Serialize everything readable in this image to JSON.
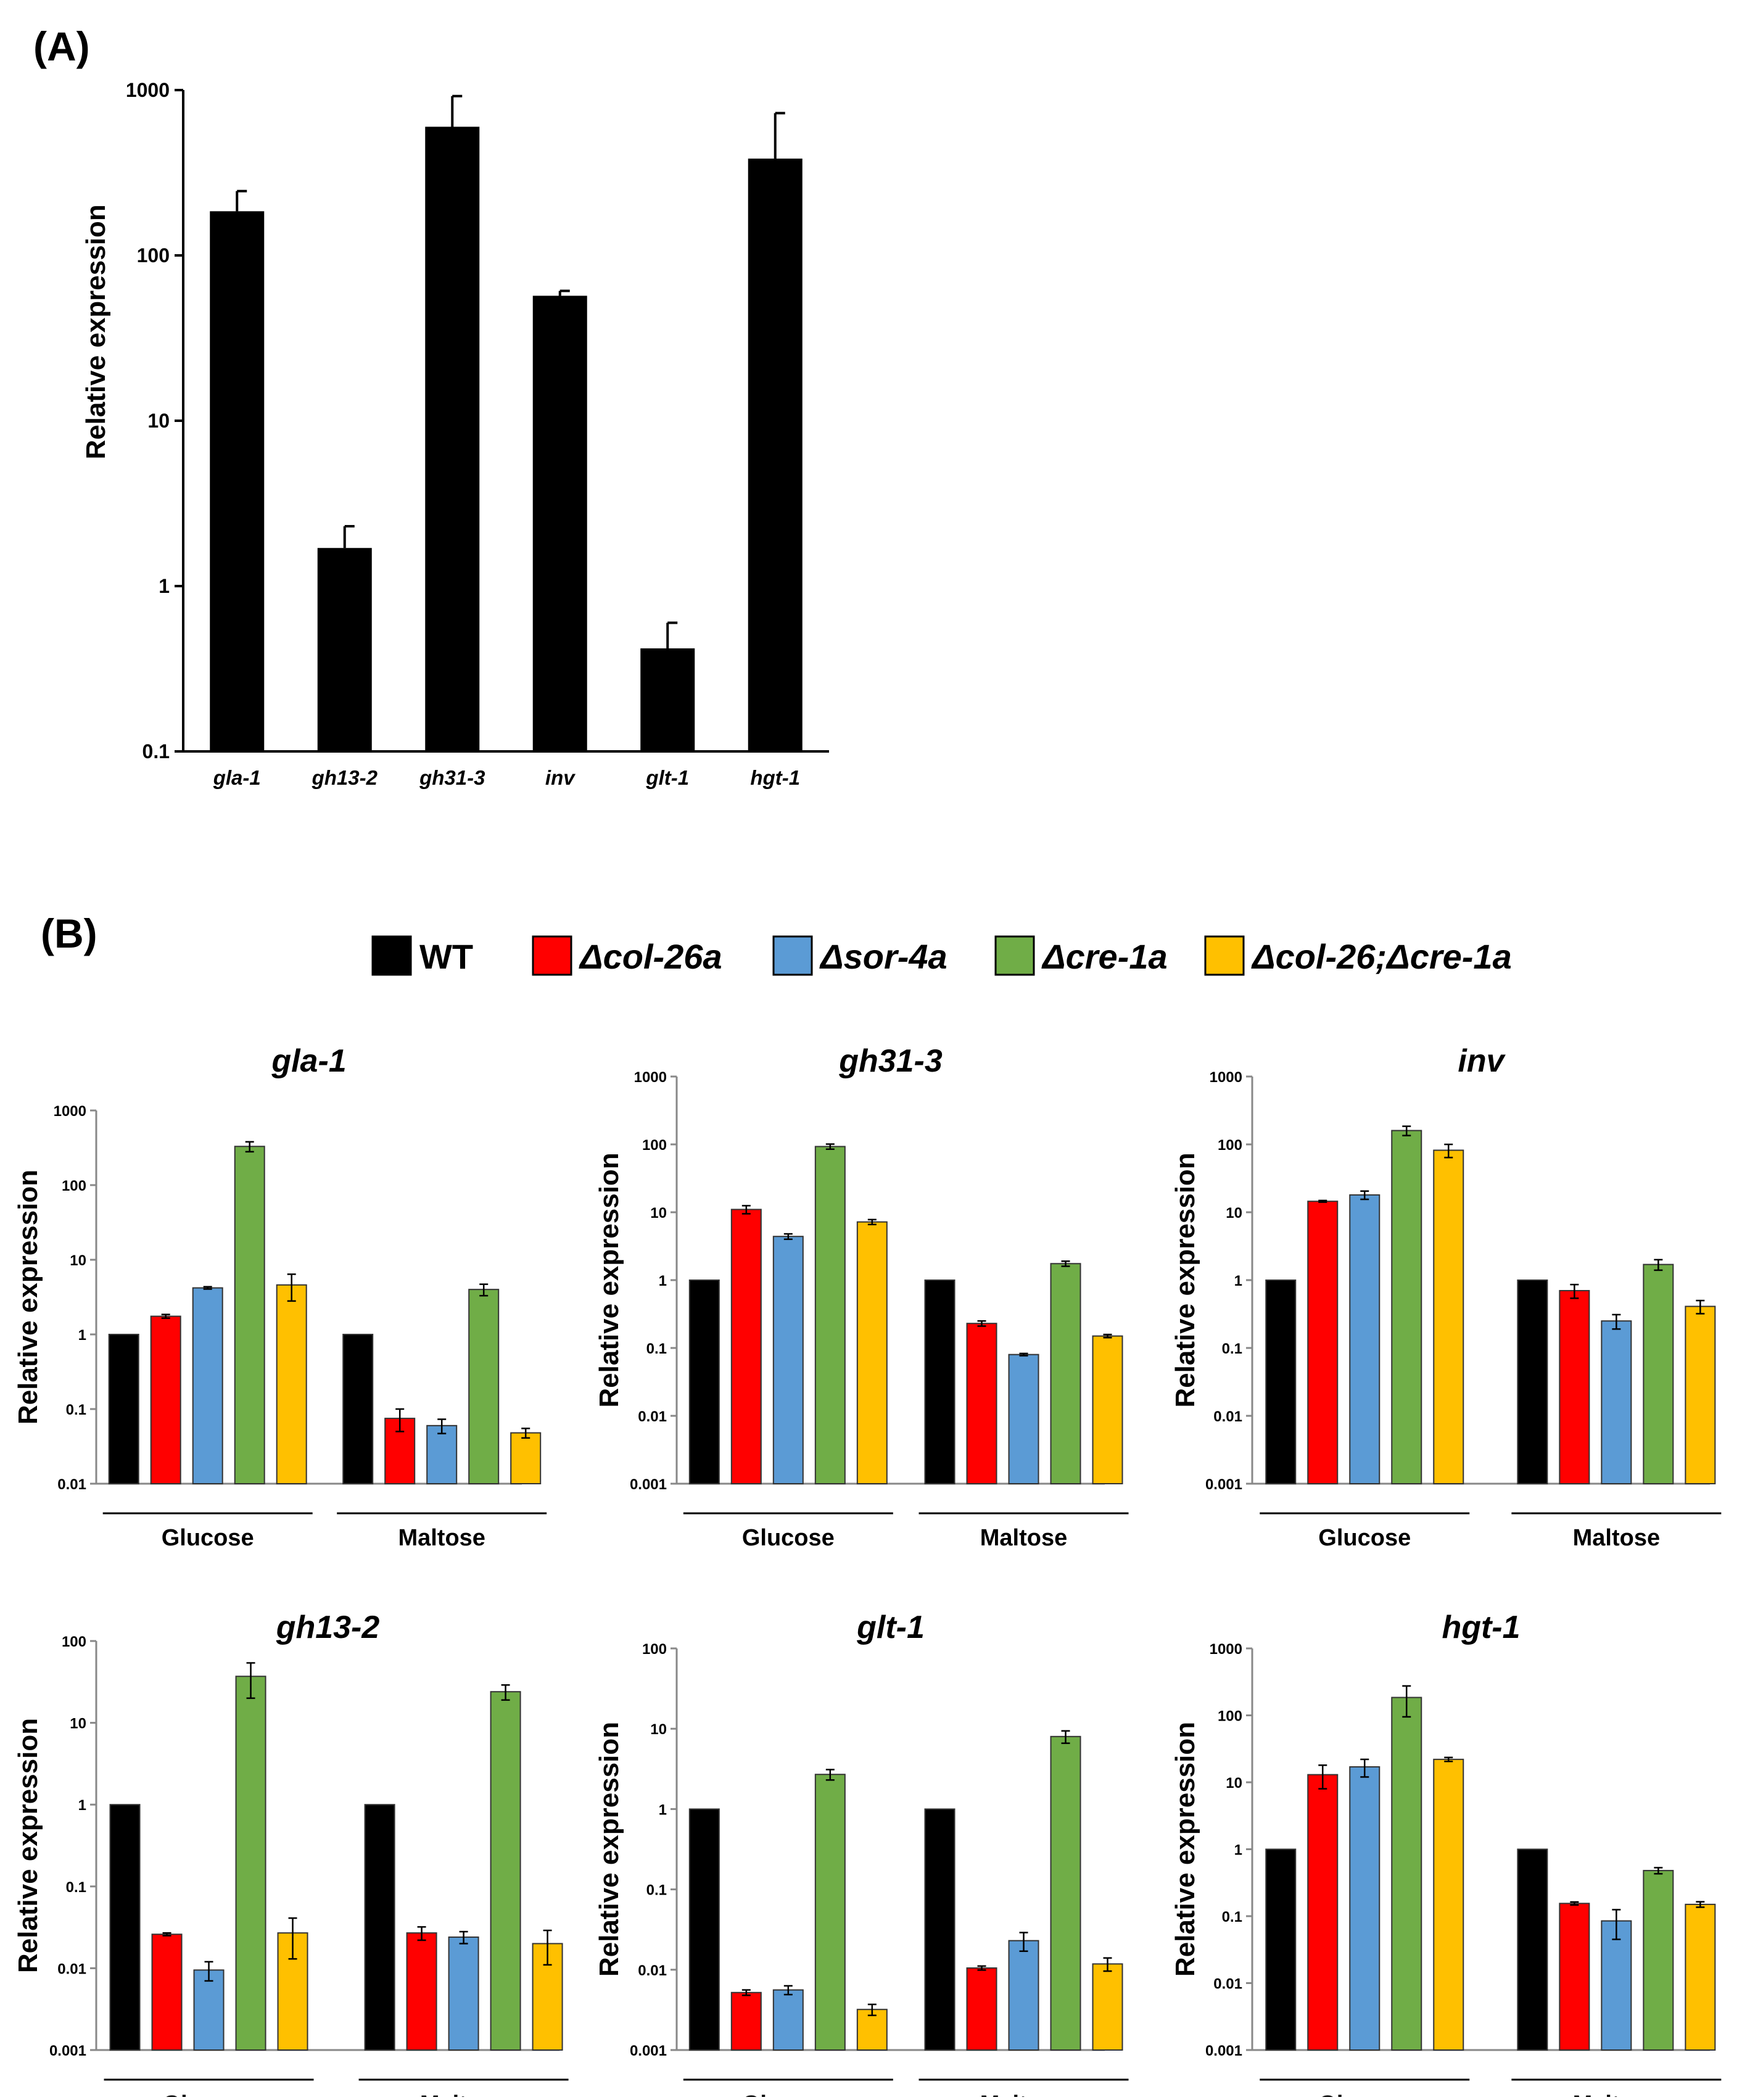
{
  "panel_a": {
    "label": "(A)",
    "chart_data": {
      "type": "bar",
      "scale": "log",
      "ylabel": "Relative expression",
      "ylim": [
        0.1,
        1000
      ],
      "yticks": [
        "0.1",
        "1",
        "10",
        "100",
        "1000"
      ],
      "categories": [
        "gla-1",
        "gh13-2",
        "gh31-3",
        "inv",
        "glt-1",
        "hgt-1"
      ],
      "values": [
        185,
        1.7,
        600,
        57,
        0.42,
        385
      ],
      "errors": [
        60,
        0.6,
        320,
        4,
        0.18,
        340
      ],
      "color": "#000000"
    }
  },
  "panel_b": {
    "label": "(B)",
    "legend": [
      {
        "label": "WT",
        "color": "#000000",
        "italic": false
      },
      {
        "label": "Δcol-26a",
        "color": "#ff0000",
        "italic": true
      },
      {
        "label": "Δsor-4a",
        "color": "#5b9bd5",
        "italic": true
      },
      {
        "label": "Δcre-1a",
        "color": "#70ad47",
        "italic": true
      },
      {
        "label": "Δcol-26;Δcre-1a",
        "color": "#ffc000",
        "italic": true
      }
    ],
    "ylabel": "Relative expression",
    "groups": [
      "Glucose",
      "Maltose"
    ],
    "charts": [
      {
        "gene": "gla-1",
        "type": "bar",
        "scale": "log",
        "ylim": [
          0.01,
          1000
        ],
        "yticks": [
          "0.01",
          "0.1",
          "1",
          "10",
          "100",
          "1000"
        ],
        "series": [
          {
            "name": "WT",
            "values": [
              1,
              1
            ],
            "errors": [
              0,
              0
            ]
          },
          {
            "name": "Δcol-26a",
            "values": [
              1.75,
              0.075
            ],
            "errors": [
              0.1,
              0.025
            ]
          },
          {
            "name": "Δsor-4a",
            "values": [
              4.2,
              0.06
            ],
            "errors": [
              0.15,
              0.013
            ]
          },
          {
            "name": "Δcre-1a",
            "values": [
              330,
              4.0
            ],
            "errors": [
              50,
              0.7
            ]
          },
          {
            "name": "Δcol-26;Δcre-1a",
            "values": [
              4.6,
              0.048
            ],
            "errors": [
              1.8,
              0.007
            ]
          }
        ]
      },
      {
        "gene": "gh31-3",
        "type": "bar",
        "scale": "log",
        "ylim": [
          0.001,
          1000
        ],
        "yticks": [
          "0.001",
          "0.01",
          "0.1",
          "1",
          "10",
          "100",
          "1000"
        ],
        "series": [
          {
            "name": "WT",
            "values": [
              1,
              1
            ],
            "errors": [
              0,
              0
            ]
          },
          {
            "name": "Δcol-26a",
            "values": [
              11,
              0.23
            ],
            "errors": [
              1.5,
              0.02
            ]
          },
          {
            "name": "Δsor-4a",
            "values": [
              4.4,
              0.08
            ],
            "errors": [
              0.4,
              0.003
            ]
          },
          {
            "name": "Δcre-1a",
            "values": [
              93,
              1.75
            ],
            "errors": [
              8,
              0.15
            ]
          },
          {
            "name": "Δcol-26;Δcre-1a",
            "values": [
              7.2,
              0.15
            ],
            "errors": [
              0.6,
              0.008
            ]
          }
        ]
      },
      {
        "gene": "inv",
        "type": "bar",
        "scale": "log",
        "ylim": [
          0.001,
          1000
        ],
        "yticks": [
          "0.001",
          "0.01",
          "0.1",
          "1",
          "10",
          "100",
          "1000"
        ],
        "series": [
          {
            "name": "WT",
            "values": [
              1,
              1
            ],
            "errors": [
              0,
              0
            ]
          },
          {
            "name": "Δcol-26a",
            "values": [
              14.5,
              0.7
            ],
            "errors": [
              0.4,
              0.16
            ]
          },
          {
            "name": "Δsor-4a",
            "values": [
              18,
              0.25
            ],
            "errors": [
              2.5,
              0.06
            ]
          },
          {
            "name": "Δcre-1a",
            "values": [
              160,
              1.7
            ],
            "errors": [
              25,
              0.3
            ]
          },
          {
            "name": "Δcol-26;Δcre-1a",
            "values": [
              82,
              0.41
            ],
            "errors": [
              18,
              0.09
            ]
          }
        ]
      },
      {
        "gene": "gh13-2",
        "type": "bar",
        "scale": "log",
        "ylim": [
          0.001,
          100
        ],
        "yticks": [
          "0.001",
          "0.01",
          "0.1",
          "1",
          "10",
          "100"
        ],
        "series": [
          {
            "name": "WT",
            "values": [
              1,
              1
            ],
            "errors": [
              0,
              0
            ]
          },
          {
            "name": "Δcol-26a",
            "values": [
              0.026,
              0.027
            ],
            "errors": [
              0.001,
              0.005
            ]
          },
          {
            "name": "Δsor-4a",
            "values": [
              0.0095,
              0.024
            ],
            "errors": [
              0.0025,
              0.004
            ]
          },
          {
            "name": "Δcre-1a",
            "values": [
              37,
              24
            ],
            "errors": [
              17,
              5
            ]
          },
          {
            "name": "Δcol-26;Δcre-1a",
            "values": [
              0.027,
              0.02
            ],
            "errors": [
              0.014,
              0.009
            ]
          }
        ]
      },
      {
        "gene": "glt-1",
        "type": "bar",
        "scale": "log",
        "ylim": [
          0.001,
          100
        ],
        "yticks": [
          "0.001",
          "0.01",
          "0.1",
          "1",
          "10",
          "100"
        ],
        "series": [
          {
            "name": "WT",
            "values": [
              1,
              1
            ],
            "errors": [
              0,
              0
            ]
          },
          {
            "name": "Δcol-26a",
            "values": [
              0.0052,
              0.0105
            ],
            "errors": [
              0.0004,
              0.0006
            ]
          },
          {
            "name": "Δsor-4a",
            "values": [
              0.0056,
              0.023
            ],
            "errors": [
              0.0007,
              0.006
            ]
          },
          {
            "name": "Δcre-1a",
            "values": [
              2.7,
              8
            ],
            "errors": [
              0.4,
              1.4
            ]
          },
          {
            "name": "Δcol-26;Δcre-1a",
            "values": [
              0.0032,
              0.0118
            ],
            "errors": [
              0.0005,
              0.0022
            ]
          }
        ]
      },
      {
        "gene": "hgt-1",
        "type": "bar",
        "scale": "log",
        "ylim": [
          0.001,
          1000
        ],
        "yticks": [
          "0.001",
          "0.01",
          "0.1",
          "1",
          "10",
          "100",
          "1000"
        ],
        "series": [
          {
            "name": "WT",
            "values": [
              1,
              1
            ],
            "errors": [
              0,
              0
            ]
          },
          {
            "name": "Δcol-26a",
            "values": [
              13,
              0.155
            ],
            "errors": [
              5,
              0.008
            ]
          },
          {
            "name": "Δsor-4a",
            "values": [
              17,
              0.085
            ],
            "errors": [
              5,
              0.04
            ]
          },
          {
            "name": "Δcre-1a",
            "values": [
              185,
              0.48
            ],
            "errors": [
              90,
              0.05
            ]
          },
          {
            "name": "Δcol-26;Δcre-1a",
            "values": [
              22,
              0.15
            ],
            "errors": [
              1.5,
              0.014
            ]
          }
        ]
      }
    ]
  }
}
